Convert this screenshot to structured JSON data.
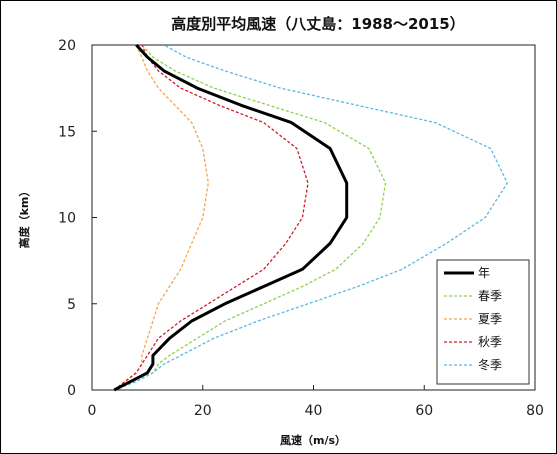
{
  "chart_data": {
    "type": "line",
    "title": "高度別平均風速（八丈島：1988～2015）",
    "xlabel": "風速（m/s）",
    "ylabel": "高度（km）",
    "xlim": [
      0,
      80
    ],
    "ylim": [
      0,
      20
    ],
    "xticks": [
      0,
      20,
      40,
      60,
      80
    ],
    "yticks": [
      0,
      5,
      10,
      15,
      20
    ],
    "grid": false,
    "legend_position": "bottom-right",
    "series": [
      {
        "name": "年",
        "color": "#000000",
        "style": "solid",
        "x": [
          4,
          7,
          10,
          11,
          11,
          14,
          18,
          24,
          31,
          38,
          43,
          46,
          46,
          43,
          36,
          27,
          19,
          13,
          10,
          8
        ],
        "y": [
          0,
          0.5,
          1,
          1.5,
          2,
          3,
          4,
          5,
          6,
          7,
          8.5,
          10,
          12,
          14,
          15.5,
          16.5,
          17.5,
          18.5,
          19.3,
          20
        ]
      },
      {
        "name": "春季",
        "color": "#8fd14f",
        "style": "dashed",
        "x": [
          4,
          8,
          11,
          12,
          14,
          19,
          24,
          31,
          38,
          44,
          49,
          52,
          53,
          50,
          42,
          32,
          22,
          15,
          11,
          9
        ],
        "y": [
          0,
          0.5,
          1,
          1.5,
          2,
          3,
          4,
          5,
          6,
          7,
          8.5,
          10,
          12,
          14,
          15.5,
          16.5,
          17.5,
          18.5,
          19.3,
          20
        ]
      },
      {
        "name": "夏季",
        "color": "#f5a44a",
        "style": "dashed",
        "x": [
          4,
          6,
          8,
          9,
          9,
          10,
          11,
          12,
          14,
          16,
          18,
          20,
          21,
          20,
          18,
          15,
          12,
          10,
          9,
          8
        ],
        "y": [
          0,
          0.5,
          1,
          1.5,
          2,
          3,
          4,
          5,
          6,
          7,
          8.5,
          10,
          12,
          14,
          15.5,
          16.5,
          17.5,
          18.5,
          19.3,
          20
        ]
      },
      {
        "name": "秋季",
        "color": "#d01c2a",
        "style": "dashed",
        "x": [
          4,
          6,
          8,
          9,
          10,
          12,
          16,
          21,
          26,
          31,
          35,
          38,
          39,
          37,
          31,
          23,
          16,
          12,
          10,
          9
        ],
        "y": [
          0,
          0.5,
          1,
          1.5,
          2,
          3,
          4,
          5,
          6,
          7,
          8.5,
          10,
          12,
          14,
          15.5,
          16.5,
          17.5,
          18.5,
          19.3,
          20
        ]
      },
      {
        "name": "冬季",
        "color": "#5bb8e0",
        "style": "dashed",
        "x": [
          4,
          8,
          11,
          13,
          16,
          22,
          30,
          39,
          48,
          56,
          64,
          71,
          75,
          72,
          62,
          48,
          34,
          24,
          17,
          13
        ],
        "y": [
          0,
          0.5,
          1,
          1.5,
          2,
          3,
          4,
          5,
          6,
          7,
          8.5,
          10,
          12,
          14,
          15.5,
          16.5,
          17.5,
          18.5,
          19.3,
          20
        ]
      }
    ]
  }
}
